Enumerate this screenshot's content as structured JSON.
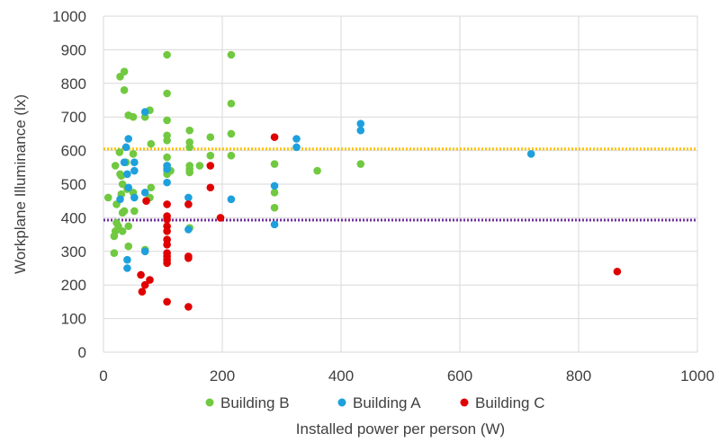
{
  "chart_data": {
    "type": "scatter",
    "xlabel": "Installed power per person (W)",
    "ylabel": "Workplane Illuminance (lx)",
    "xlim": [
      0,
      1000
    ],
    "ylim": [
      0,
      1000
    ],
    "xticks": [
      "0",
      "200",
      "400",
      "600",
      "800",
      "1000"
    ],
    "yticks": [
      "0",
      "100",
      "200",
      "300",
      "400",
      "500",
      "600",
      "700",
      "800",
      "900",
      "1000"
    ],
    "grid": true,
    "legend_position": "bottom",
    "reference_lines": [
      {
        "y": 605,
        "color": "#FFC000",
        "style": "dotted"
      },
      {
        "y": 393,
        "color": "#7030A0",
        "style": "dotted"
      }
    ],
    "series": [
      {
        "name": "Building B",
        "color": "#70C940",
        "points": [
          [
            8,
            460
          ],
          [
            18,
            295
          ],
          [
            18,
            345
          ],
          [
            20,
            360
          ],
          [
            20,
            555
          ],
          [
            22,
            385
          ],
          [
            22,
            440
          ],
          [
            25,
            375
          ],
          [
            27,
            595
          ],
          [
            28,
            820
          ],
          [
            28,
            530
          ],
          [
            30,
            470
          ],
          [
            30,
            525
          ],
          [
            32,
            415
          ],
          [
            32,
            360
          ],
          [
            32,
            500
          ],
          [
            35,
            780
          ],
          [
            35,
            835
          ],
          [
            35,
            420
          ],
          [
            38,
            565
          ],
          [
            40,
            485
          ],
          [
            42,
            705
          ],
          [
            42,
            375
          ],
          [
            42,
            315
          ],
          [
            50,
            700
          ],
          [
            50,
            590
          ],
          [
            50,
            475
          ],
          [
            52,
            420
          ],
          [
            70,
            700
          ],
          [
            70,
            305
          ],
          [
            78,
            460
          ],
          [
            78,
            720
          ],
          [
            80,
            490
          ],
          [
            80,
            620
          ],
          [
            107,
            885
          ],
          [
            107,
            770
          ],
          [
            107,
            690
          ],
          [
            107,
            645
          ],
          [
            107,
            630
          ],
          [
            107,
            580
          ],
          [
            107,
            555
          ],
          [
            107,
            540
          ],
          [
            107,
            530
          ],
          [
            113,
            540
          ],
          [
            145,
            660
          ],
          [
            145,
            625
          ],
          [
            145,
            610
          ],
          [
            145,
            555
          ],
          [
            145,
            545
          ],
          [
            145,
            535
          ],
          [
            145,
            370
          ],
          [
            162,
            555
          ],
          [
            180,
            640
          ],
          [
            180,
            585
          ],
          [
            215,
            885
          ],
          [
            215,
            740
          ],
          [
            215,
            650
          ],
          [
            215,
            585
          ],
          [
            288,
            560
          ],
          [
            288,
            475
          ],
          [
            288,
            430
          ],
          [
            360,
            540
          ],
          [
            433,
            560
          ]
        ]
      },
      {
        "name": "Building A",
        "color": "#1EA0DC",
        "points": [
          [
            28,
            455
          ],
          [
            35,
            565
          ],
          [
            38,
            610
          ],
          [
            40,
            530
          ],
          [
            40,
            275
          ],
          [
            40,
            250
          ],
          [
            42,
            635
          ],
          [
            42,
            490
          ],
          [
            52,
            565
          ],
          [
            52,
            540
          ],
          [
            52,
            460
          ],
          [
            70,
            715
          ],
          [
            70,
            475
          ],
          [
            70,
            300
          ],
          [
            107,
            555
          ],
          [
            107,
            545
          ],
          [
            107,
            505
          ],
          [
            143,
            460
          ],
          [
            143,
            365
          ],
          [
            215,
            455
          ],
          [
            288,
            495
          ],
          [
            288,
            380
          ],
          [
            325,
            635
          ],
          [
            325,
            610
          ],
          [
            433,
            680
          ],
          [
            433,
            660
          ],
          [
            720,
            590
          ]
        ]
      },
      {
        "name": "Building C",
        "color": "#E00000",
        "points": [
          [
            63,
            230
          ],
          [
            65,
            180
          ],
          [
            70,
            200
          ],
          [
            72,
            450
          ],
          [
            78,
            215
          ],
          [
            107,
            440
          ],
          [
            107,
            405
          ],
          [
            107,
            395
          ],
          [
            107,
            375
          ],
          [
            107,
            360
          ],
          [
            107,
            335
          ],
          [
            107,
            320
          ],
          [
            107,
            295
          ],
          [
            107,
            285
          ],
          [
            107,
            275
          ],
          [
            107,
            265
          ],
          [
            107,
            150
          ],
          [
            143,
            440
          ],
          [
            143,
            285
          ],
          [
            143,
            280
          ],
          [
            143,
            135
          ],
          [
            180,
            555
          ],
          [
            180,
            490
          ],
          [
            197,
            400
          ],
          [
            288,
            640
          ],
          [
            865,
            240
          ]
        ]
      }
    ]
  }
}
